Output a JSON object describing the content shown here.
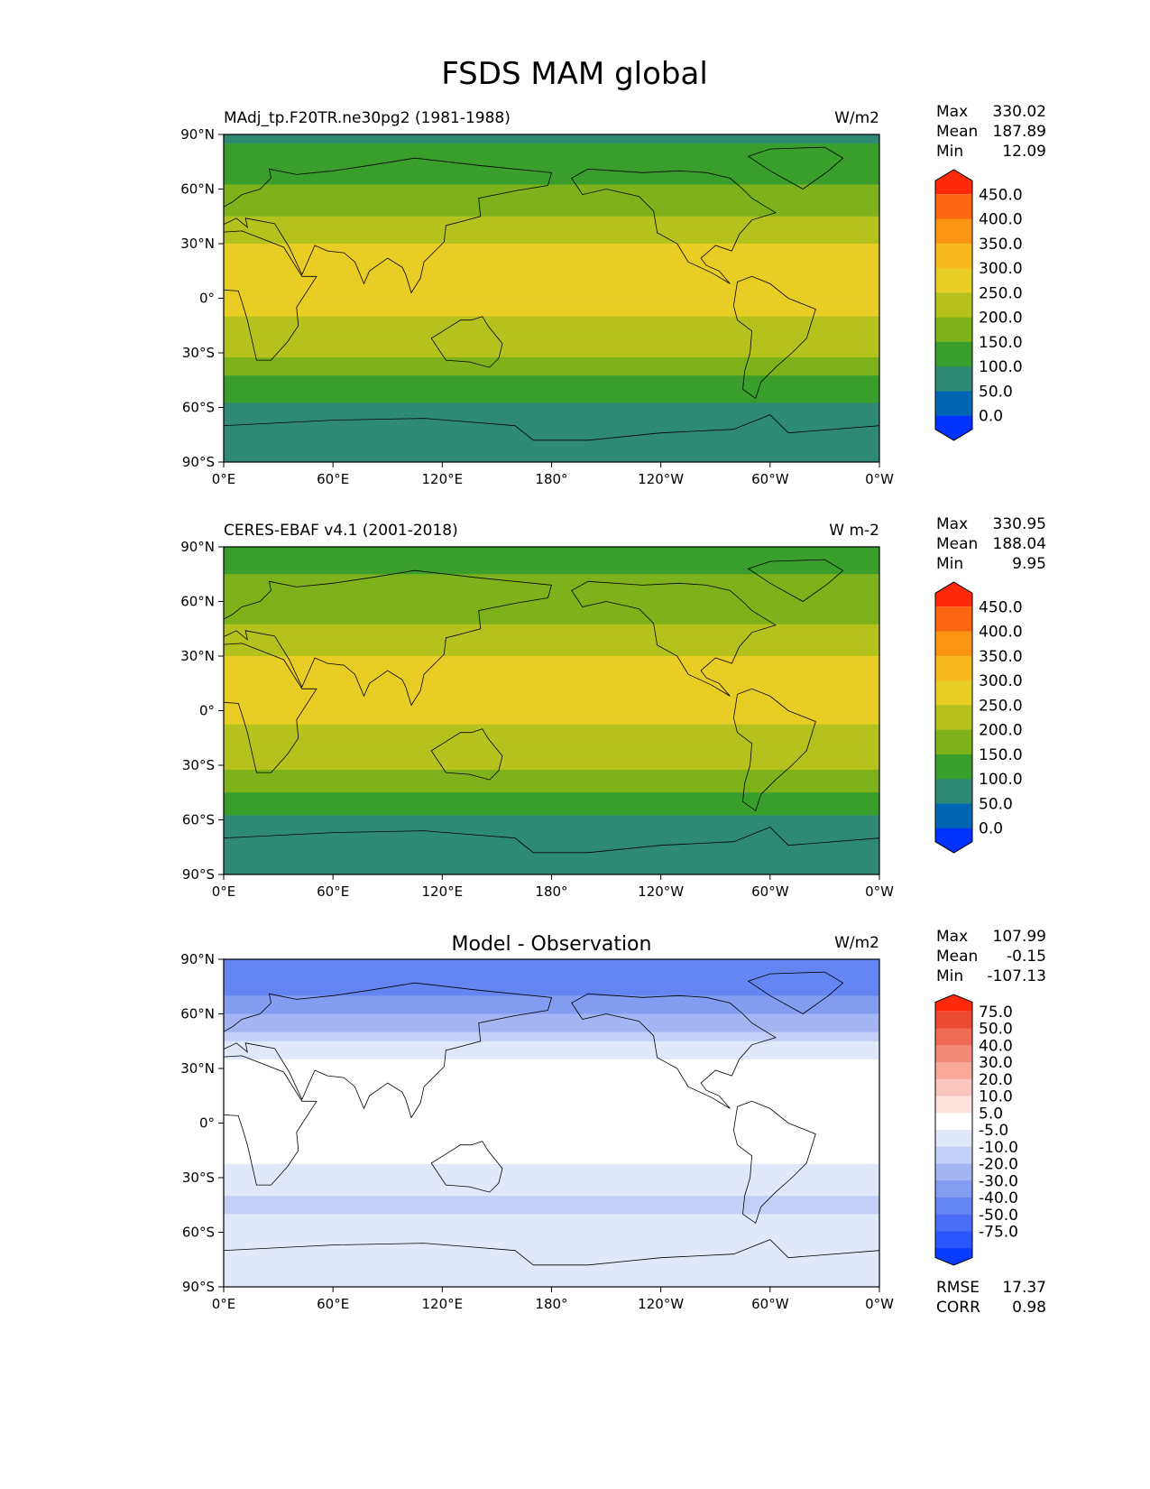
{
  "title": "FSDS MAM global",
  "x_ticks": [
    "0°E",
    "60°E",
    "120°E",
    "180°",
    "120°W",
    "60°W",
    "0°W"
  ],
  "y_ticks": [
    "90°N",
    "60°N",
    "30°N",
    "0°",
    "30°S",
    "60°S",
    "90°S"
  ],
  "panels": [
    {
      "left_title": "MAdj_tp.F20TR.ne30pg2 (1981-1988)",
      "center_title": "",
      "units": "W/m2",
      "stats_labels": [
        "Max",
        "Mean",
        "Min"
      ],
      "stats_values": [
        "330.02",
        "187.89",
        "12.09"
      ],
      "colorbar_ticks": [
        "450.0",
        "400.0",
        "350.0",
        "300.0",
        "250.0",
        "200.0",
        "150.0",
        "100.0",
        "50.0",
        "0.0"
      ],
      "colors": [
        "#0033ff",
        "#0066b2",
        "#2e8a73",
        "#3a9e2c",
        "#7db21a",
        "#b5c21e",
        "#e8cd25",
        "#f7b91e",
        "#fb9514",
        "#fb6710",
        "#ff2a0a"
      ]
    },
    {
      "left_title": "CERES-EBAF v4.1 (2001-2018)",
      "center_title": "",
      "units": "W m-2",
      "stats_labels": [
        "Max",
        "Mean",
        "Min"
      ],
      "stats_values": [
        "330.95",
        "188.04",
        "9.95"
      ],
      "colorbar_ticks": [
        "450.0",
        "400.0",
        "350.0",
        "300.0",
        "250.0",
        "200.0",
        "150.0",
        "100.0",
        "50.0",
        "0.0"
      ],
      "colors": [
        "#0033ff",
        "#0066b2",
        "#2e8a73",
        "#3a9e2c",
        "#7db21a",
        "#b5c21e",
        "#e8cd25",
        "#f7b91e",
        "#fb9514",
        "#fb6710",
        "#ff2a0a"
      ]
    },
    {
      "left_title": "",
      "center_title": "Model - Observation",
      "units": "W/m2",
      "stats_labels": [
        "Max",
        "Mean",
        "Min"
      ],
      "stats_values": [
        "107.99",
        "-0.15",
        "-107.13"
      ],
      "colorbar_ticks": [
        "75.0",
        "50.0",
        "40.0",
        "30.0",
        "20.0",
        "10.0",
        "5.0",
        "-5.0",
        "-10.0",
        "-20.0",
        "-30.0",
        "-40.0",
        "-50.0",
        "-75.0"
      ],
      "colors": [
        "#0a3cff",
        "#2a55ff",
        "#4a6ef6",
        "#6585f2",
        "#839df1",
        "#a3b6f3",
        "#c3cff6",
        "#e2e8fb",
        "#ffffff",
        "#fde2dd",
        "#fbc6bd",
        "#f8a999",
        "#f48b78",
        "#f06b55",
        "#ea4a32",
        "#ff2a0a"
      ],
      "error_labels": [
        "RMSE",
        "CORR"
      ],
      "error_values": [
        "17.37",
        "0.98"
      ]
    }
  ],
  "chart_data": [
    {
      "type": "heatmap",
      "title": "MAdj_tp.F20TR.ne30pg2 (1981-1988)",
      "units": "W/m2",
      "xlim": [
        0,
        360
      ],
      "ylim": [
        -90,
        90
      ],
      "levels": [
        0,
        50,
        100,
        150,
        200,
        250,
        300,
        350,
        400,
        450
      ],
      "zonal_mean_profile": {
        "lat": [
          90,
          75,
          60,
          45,
          30,
          15,
          0,
          -15,
          -30,
          -45,
          -60,
          -75,
          -90
        ],
        "value": [
          95,
          110,
          160,
          200,
          250,
          270,
          260,
          245,
          210,
          140,
          90,
          70,
          70
        ]
      },
      "max": 330.02,
      "mean": 187.89,
      "min": 12.09
    },
    {
      "type": "heatmap",
      "title": "CERES-EBAF v4.1 (2001-2018)",
      "units": "W m-2",
      "xlim": [
        0,
        360
      ],
      "ylim": [
        -90,
        90
      ],
      "levels": [
        0,
        50,
        100,
        150,
        200,
        250,
        300,
        350,
        400,
        450
      ],
      "zonal_mean_profile": {
        "lat": [
          90,
          75,
          60,
          45,
          30,
          15,
          0,
          -15,
          -30,
          -45,
          -60,
          -75,
          -90
        ],
        "value": [
          120,
          150,
          170,
          205,
          250,
          265,
          255,
          245,
          210,
          145,
          90,
          70,
          70
        ]
      },
      "max": 330.95,
      "mean": 188.04,
      "min": 9.95
    },
    {
      "type": "heatmap",
      "title": "Model - Observation",
      "units": "W/m2",
      "xlim": [
        0,
        360
      ],
      "ylim": [
        -90,
        90
      ],
      "levels": [
        -75,
        -50,
        -40,
        -30,
        -20,
        -10,
        -5,
        5,
        10,
        20,
        30,
        40,
        50,
        75
      ],
      "zonal_mean_profile": {
        "lat": [
          90,
          75,
          60,
          45,
          30,
          15,
          0,
          -15,
          -30,
          -45,
          -60,
          -75,
          -90
        ],
        "value": [
          -30,
          -35,
          -20,
          -5,
          10,
          8,
          5,
          8,
          2,
          -8,
          0,
          2,
          0
        ]
      },
      "max": 107.99,
      "mean": -0.15,
      "min": -107.13,
      "rmse": 17.37,
      "corr": 0.98
    }
  ]
}
